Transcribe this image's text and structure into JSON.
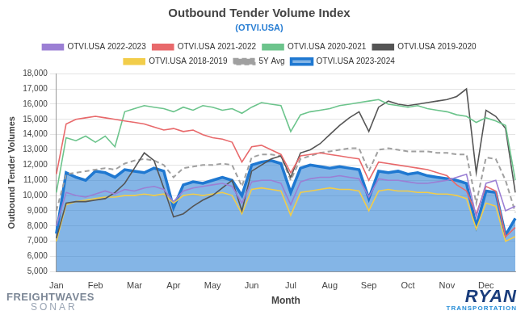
{
  "chart_data": {
    "type": "line",
    "title": "Outbound Tender Volume Index",
    "subtitle": "(OTVI.USA)",
    "x_label": "Month",
    "y_label": "Outbound Tender Volumes",
    "logos": [
      "FREIGHTWAVES",
      "SONAR",
      "RYAN",
      "TRANSPORTATION"
    ],
    "categories": [
      "Jan",
      null,
      null,
      null,
      "Feb",
      null,
      null,
      null,
      "Mar",
      null,
      null,
      null,
      "Apr",
      null,
      null,
      null,
      "May",
      null,
      null,
      null,
      "Jun",
      null,
      null,
      null,
      "Jul",
      null,
      null,
      null,
      "Aug",
      null,
      null,
      null,
      "Sep",
      null,
      null,
      null,
      "Oct",
      null,
      null,
      null,
      "Nov",
      null,
      null,
      null,
      "Dec",
      null,
      null,
      null
    ],
    "ylim": [
      5000,
      18000
    ],
    "yticks": [
      {
        "value": 5000,
        "label": "5,000"
      },
      {
        "value": 6000,
        "label": "6,000"
      },
      {
        "value": 7000,
        "label": "7,000"
      },
      {
        "value": 8000,
        "label": "8,000"
      },
      {
        "value": 9000,
        "label": "9,000"
      },
      {
        "value": 10000,
        "label": "10,000"
      },
      {
        "value": 11000,
        "label": "11,000"
      },
      {
        "value": 12000,
        "label": "12,000"
      },
      {
        "value": 13000,
        "label": "13,000"
      },
      {
        "value": 14000,
        "label": "14,000"
      },
      {
        "value": 15000,
        "label": "15,000"
      },
      {
        "value": 16000,
        "label": "16,000"
      },
      {
        "value": 17000,
        "label": "17,000"
      },
      {
        "value": 18000,
        "label": "18,000"
      }
    ],
    "grid": true,
    "legend": "top",
    "series": [
      {
        "name": "OTVI.USA 2023-2024",
        "color": "#1f78d1",
        "type": "area",
        "values": [
          7500,
          11500,
          11200,
          11000,
          11600,
          11500,
          11200,
          11700,
          11600,
          11500,
          11800,
          11600,
          9200,
          10700,
          10900,
          10800,
          11000,
          11200,
          11000,
          10000,
          12000,
          12200,
          12300,
          12100,
          10200,
          11800,
          12000,
          11900,
          11800,
          11900,
          11800,
          11700,
          9800,
          11600,
          11500,
          11600,
          11400,
          11500,
          11300,
          11200,
          11100,
          11000,
          10800,
          8000,
          10300,
          10200,
          7400,
          8500
        ]
      },
      {
        "name": "OTVI.USA 2022-2023",
        "color": "#9b7fd4",
        "values": [
          8000,
          10200,
          10000,
          9900,
          10100,
          10300,
          10100,
          10400,
          10300,
          10500,
          10600,
          10400,
          9600,
          10300,
          10500,
          10600,
          10700,
          10800,
          10600,
          9500,
          10900,
          11000,
          11000,
          10800,
          9400,
          10900,
          11100,
          11200,
          11200,
          11300,
          11200,
          11100,
          9900,
          11100,
          11000,
          11000,
          10900,
          10800,
          10800,
          10900,
          11000,
          11200,
          11400,
          8600,
          10800,
          11000,
          9000,
          9300
        ]
      },
      {
        "name": "OTVI.USA 2021-2022",
        "color": "#e8696b",
        "values": [
          11400,
          14700,
          15000,
          15100,
          15200,
          15100,
          15000,
          14900,
          14800,
          14700,
          14500,
          14300,
          14400,
          14200,
          14300,
          14000,
          13800,
          13700,
          13500,
          12200,
          13200,
          13300,
          13000,
          12700,
          11500,
          12600,
          12700,
          12800,
          12700,
          12600,
          12500,
          12400,
          11000,
          12200,
          12100,
          12000,
          11900,
          11800,
          11700,
          11500,
          11300,
          10700,
          10300,
          8800,
          10600,
          10300,
          7300,
          7900
        ]
      },
      {
        "name": "OTVI.USA 2020-2021",
        "color": "#6cc48c",
        "values": [
          10200,
          13800,
          13600,
          13900,
          13500,
          13900,
          13200,
          15500,
          15700,
          15900,
          15800,
          15700,
          15500,
          15800,
          15600,
          15900,
          15800,
          15600,
          15700,
          15400,
          15800,
          16100,
          16000,
          15900,
          14200,
          15300,
          15500,
          15600,
          15700,
          15900,
          16000,
          16100,
          16200,
          16300,
          16000,
          15900,
          15800,
          15900,
          15700,
          15600,
          15500,
          15300,
          15200,
          14800,
          15100,
          14900,
          14600,
          11000
        ]
      },
      {
        "name": "OTVI.USA 2019-2020",
        "color": "#555555",
        "values": [
          7200,
          9500,
          9600,
          9600,
          9700,
          9800,
          10200,
          10800,
          11800,
          12800,
          12300,
          10500,
          8600,
          8800,
          9300,
          9700,
          10000,
          10500,
          11000,
          9000,
          11600,
          12000,
          12400,
          12600,
          11200,
          12800,
          13000,
          13400,
          14000,
          14600,
          15100,
          15500,
          14200,
          15800,
          16200,
          16000,
          15900,
          16000,
          16100,
          16200,
          16300,
          16500,
          17000,
          11500,
          15600,
          15200,
          14400,
          10200
        ]
      },
      {
        "name": "OTVI.USA 2018-2019",
        "color": "#f2cd4a",
        "values": [
          7000,
          9400,
          9600,
          9700,
          9800,
          9900,
          9900,
          10000,
          10000,
          10100,
          10000,
          10100,
          9500,
          10000,
          10100,
          10000,
          10100,
          10200,
          10000,
          8800,
          10400,
          10500,
          10400,
          10300,
          8700,
          10200,
          10300,
          10400,
          10500,
          10400,
          10400,
          10300,
          9000,
          10300,
          10400,
          10300,
          10300,
          10200,
          10200,
          10100,
          10100,
          10000,
          9800,
          7800,
          9500,
          9300,
          7000,
          7300
        ]
      },
      {
        "name": "5Y Avg",
        "color": "#a0a0a0",
        "line_style": "dashed",
        "values": [
          9000,
          11400,
          11500,
          11600,
          11700,
          11800,
          11700,
          12100,
          12300,
          12400,
          12300,
          12000,
          11200,
          11800,
          11900,
          12000,
          12000,
          12100,
          12000,
          10600,
          12500,
          12700,
          12700,
          12600,
          11000,
          12400,
          12600,
          12800,
          12900,
          13000,
          13100,
          13100,
          11600,
          13000,
          13100,
          13000,
          12900,
          12900,
          12900,
          12800,
          12800,
          12700,
          12700,
          9500,
          12500,
          12400,
          11000,
          8900
        ]
      }
    ]
  }
}
